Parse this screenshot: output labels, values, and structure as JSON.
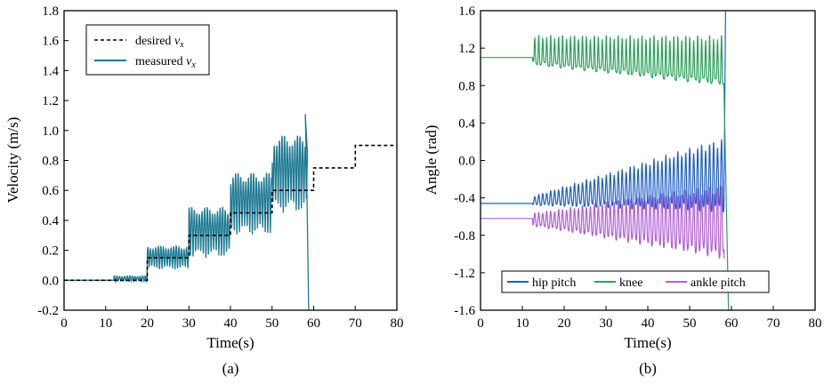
{
  "chart_data": [
    {
      "type": "line",
      "panel_label": "(a)",
      "xlabel": "Time(s)",
      "ylabel": "Velocity (m/s)",
      "xlim": [
        0,
        80
      ],
      "ylim": [
        -0.2,
        1.8
      ],
      "xticks": [
        "0",
        "10",
        "20",
        "30",
        "40",
        "50",
        "60",
        "70",
        "80"
      ],
      "yticks": [
        "-0.2",
        "0.0",
        "0.2",
        "0.4",
        "0.6",
        "0.8",
        "1.0",
        "1.2",
        "1.4",
        "1.6",
        "1.8"
      ],
      "grid": false,
      "legend_position": "top-left",
      "series": [
        {
          "name": "desired",
          "subscript_symbol": "v",
          "subscript": "x",
          "style": "dashed",
          "color": "#000000",
          "steps": [
            [
              0,
              0.0
            ],
            [
              20,
              0.15
            ],
            [
              30,
              0.3
            ],
            [
              40,
              0.45
            ],
            [
              50,
              0.6
            ],
            [
              60,
              0.75
            ],
            [
              70,
              0.9
            ],
            [
              80,
              0.9
            ]
          ]
        },
        {
          "name": "measured",
          "subscript_symbol": "v",
          "subscript": "x",
          "style": "solid",
          "color": "#1f7a93",
          "oscillation_segments": [
            {
              "t": [
                0,
                12
              ],
              "low": 0.0,
              "high": 0.0
            },
            {
              "t": [
                12,
                20
              ],
              "low": -0.01,
              "high": 0.03
            },
            {
              "t": [
                20,
                30
              ],
              "low": 0.07,
              "high": 0.23
            },
            {
              "t": [
                30,
                40
              ],
              "low": 0.15,
              "high": 0.49
            },
            {
              "t": [
                40,
                50
              ],
              "low": 0.3,
              "high": 0.72
            },
            {
              "t": [
                50,
                58.5
              ],
              "low": 0.45,
              "high": 0.97
            }
          ],
          "peak": [
            58,
            1.11
          ],
          "drop_to": [
            58.8,
            -0.2
          ]
        }
      ]
    },
    {
      "type": "line",
      "panel_label": "(b)",
      "xlabel": "Time(s)",
      "ylabel": "Angle (rad)",
      "xlim": [
        0,
        80
      ],
      "ylim": [
        -1.6,
        1.6
      ],
      "xticks": [
        "0",
        "10",
        "20",
        "30",
        "40",
        "50",
        "60",
        "70",
        "80"
      ],
      "yticks": [
        "-1.6",
        "-1.2",
        "-0.8",
        "-0.4",
        "0.0",
        "0.4",
        "0.8",
        "1.2",
        "1.6"
      ],
      "grid": false,
      "legend_position": "bottom",
      "series": [
        {
          "name": "hip pitch",
          "color": "#1f5fc8",
          "baseline": -0.46,
          "osc_start": 12.5,
          "osc_start_range": [
            -0.48,
            -0.38
          ],
          "osc_end_range": [
            -0.55,
            0.25
          ],
          "end_spike": [
            58.6,
            1.6
          ]
        },
        {
          "name": "knee",
          "color": "#2ca05a",
          "baseline": 1.1,
          "osc_start": 12.5,
          "osc_start_range": [
            1.02,
            1.34
          ],
          "osc_end_range": [
            0.8,
            1.34
          ],
          "end_spike": [
            59.3,
            -1.6
          ]
        },
        {
          "name": "ankle pitch",
          "color": "#b05fd6",
          "baseline": -0.62,
          "osc_start": 12.5,
          "osc_start_range": [
            -0.7,
            -0.56
          ],
          "osc_end_range": [
            -1.05,
            -0.25
          ],
          "end_spike": [
            58.3,
            -1.05
          ]
        }
      ]
    }
  ]
}
